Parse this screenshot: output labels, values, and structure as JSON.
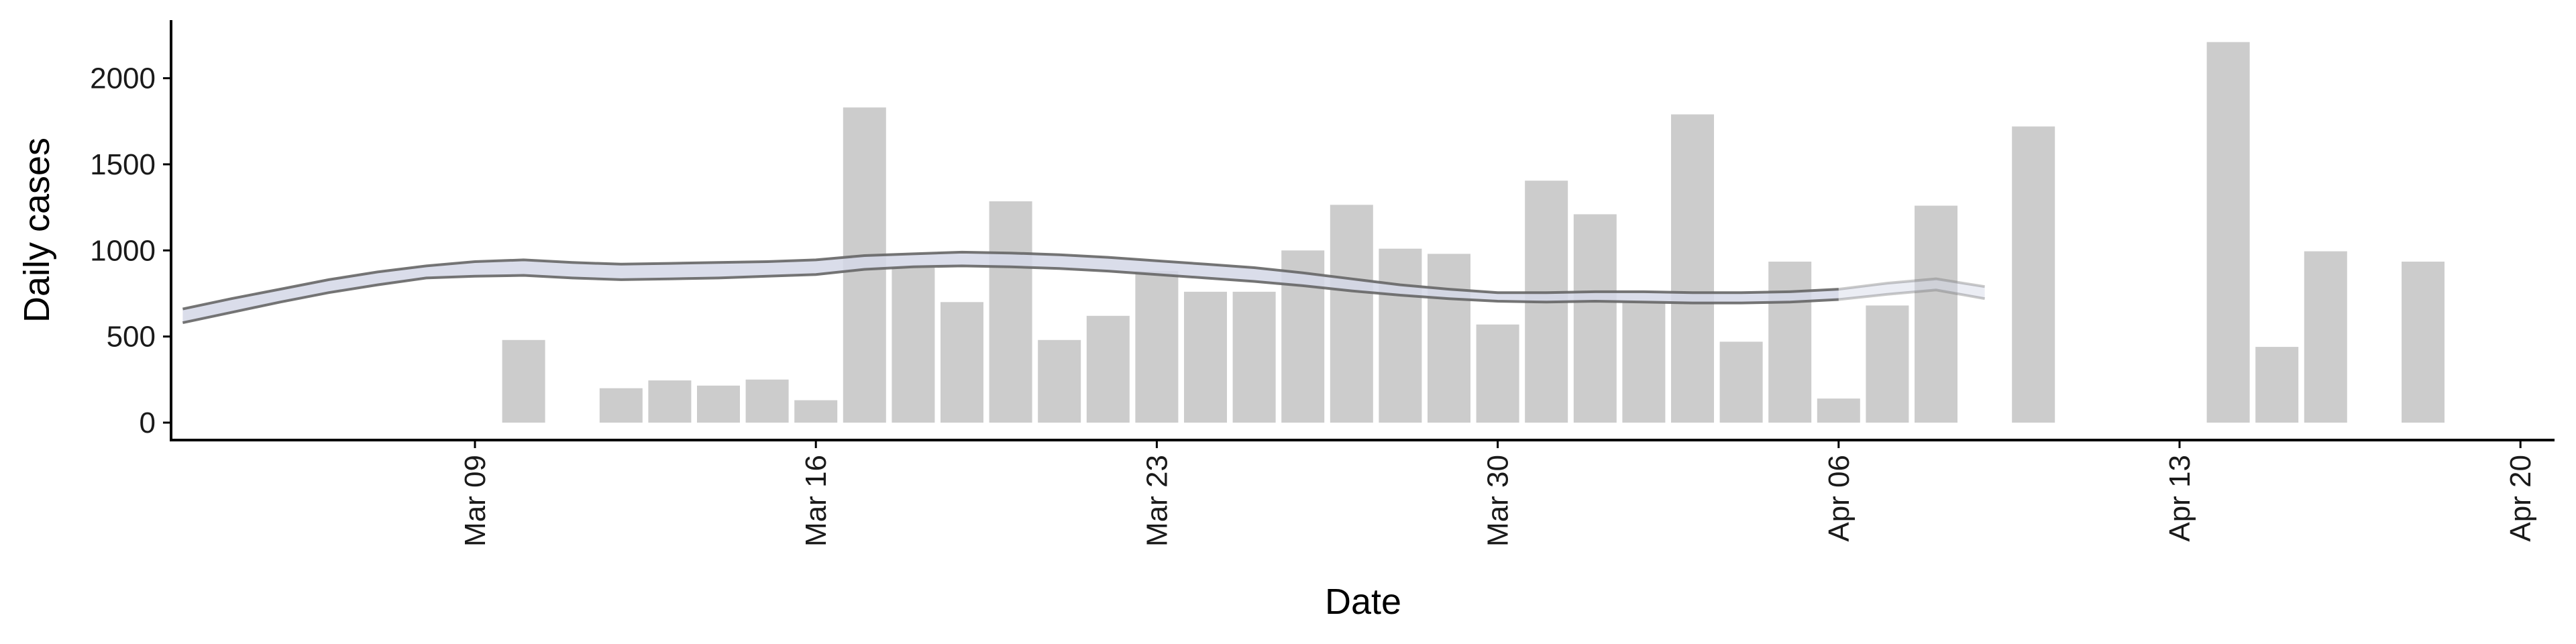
{
  "chart_data": {
    "type": "bar",
    "title": "",
    "xlabel": "Date",
    "ylabel": "Daily cases",
    "ylim": [
      -100,
      2320
    ],
    "xlim": [
      "2020-03-01",
      "2020-04-20"
    ],
    "grid": false,
    "legend": "none",
    "y_ticks": [
      0,
      500,
      1000,
      1500,
      2000
    ],
    "x_ticks": [
      {
        "date": "2020-03-09",
        "label": "Mar 09"
      },
      {
        "date": "2020-03-16",
        "label": "Mar 16"
      },
      {
        "date": "2020-03-23",
        "label": "Mar 23"
      },
      {
        "date": "2020-03-30",
        "label": "Mar 30"
      },
      {
        "date": "2020-04-06",
        "label": "Apr 06"
      },
      {
        "date": "2020-04-13",
        "label": "Apr 13"
      },
      {
        "date": "2020-04-20",
        "label": "Apr 20"
      }
    ],
    "bars": [
      {
        "date": "2020-03-10",
        "value": 480
      },
      {
        "date": "2020-03-12",
        "value": 200
      },
      {
        "date": "2020-03-13",
        "value": 245
      },
      {
        "date": "2020-03-14",
        "value": 215
      },
      {
        "date": "2020-03-15",
        "value": 250
      },
      {
        "date": "2020-03-16",
        "value": 130
      },
      {
        "date": "2020-03-17",
        "value": 1830
      },
      {
        "date": "2020-03-18",
        "value": 900
      },
      {
        "date": "2020-03-19",
        "value": 700
      },
      {
        "date": "2020-03-20",
        "value": 1285
      },
      {
        "date": "2020-03-21",
        "value": 480
      },
      {
        "date": "2020-03-22",
        "value": 620
      },
      {
        "date": "2020-03-23",
        "value": 880
      },
      {
        "date": "2020-03-24",
        "value": 760
      },
      {
        "date": "2020-03-25",
        "value": 760
      },
      {
        "date": "2020-03-26",
        "value": 1000
      },
      {
        "date": "2020-03-27",
        "value": 1265
      },
      {
        "date": "2020-03-28",
        "value": 1010
      },
      {
        "date": "2020-03-29",
        "value": 980
      },
      {
        "date": "2020-03-30",
        "value": 570
      },
      {
        "date": "2020-03-31",
        "value": 1405
      },
      {
        "date": "2020-04-01",
        "value": 1210
      },
      {
        "date": "2020-04-02",
        "value": 700
      },
      {
        "date": "2020-04-03",
        "value": 1790
      },
      {
        "date": "2020-04-04",
        "value": 470
      },
      {
        "date": "2020-04-05",
        "value": 935
      },
      {
        "date": "2020-04-06",
        "value": 140
      },
      {
        "date": "2020-04-07",
        "value": 680
      },
      {
        "date": "2020-04-08",
        "value": 1260
      },
      {
        "date": "2020-04-10",
        "value": 1720
      },
      {
        "date": "2020-04-14",
        "value": 2210
      },
      {
        "date": "2020-04-15",
        "value": 440
      },
      {
        "date": "2020-04-16",
        "value": 995
      },
      {
        "date": "2020-04-18",
        "value": 935
      }
    ],
    "trend": {
      "dates": [
        "2020-03-03",
        "2020-03-04",
        "2020-03-05",
        "2020-03-06",
        "2020-03-07",
        "2020-03-08",
        "2020-03-09",
        "2020-03-10",
        "2020-03-11",
        "2020-03-12",
        "2020-03-13",
        "2020-03-14",
        "2020-03-15",
        "2020-03-16",
        "2020-03-17",
        "2020-03-18",
        "2020-03-19",
        "2020-03-20",
        "2020-03-21",
        "2020-03-22",
        "2020-03-23",
        "2020-03-24",
        "2020-03-25",
        "2020-03-26",
        "2020-03-27",
        "2020-03-28",
        "2020-03-29",
        "2020-03-30",
        "2020-03-31",
        "2020-04-01",
        "2020-04-02",
        "2020-04-03",
        "2020-04-04",
        "2020-04-05",
        "2020-04-06",
        "2020-04-07",
        "2020-04-08",
        "2020-04-09"
      ],
      "upper": [
        660,
        720,
        775,
        830,
        875,
        910,
        935,
        945,
        930,
        920,
        925,
        930,
        935,
        945,
        970,
        980,
        990,
        985,
        975,
        960,
        940,
        920,
        900,
        870,
        835,
        800,
        775,
        755,
        755,
        760,
        760,
        755,
        755,
        760,
        775,
        810,
        835,
        790
      ],
      "lower": [
        580,
        640,
        700,
        755,
        800,
        840,
        850,
        855,
        840,
        830,
        835,
        840,
        850,
        860,
        890,
        905,
        910,
        905,
        895,
        880,
        860,
        840,
        820,
        795,
        765,
        740,
        720,
        705,
        700,
        705,
        700,
        695,
        695,
        700,
        715,
        745,
        770,
        720
      ],
      "recent_from": "2020-04-06"
    },
    "colors": {
      "bar": "#cccccc",
      "ribbon": "#d3d7e6",
      "ribbon_line": "#666666",
      "axis": "#000000"
    }
  }
}
